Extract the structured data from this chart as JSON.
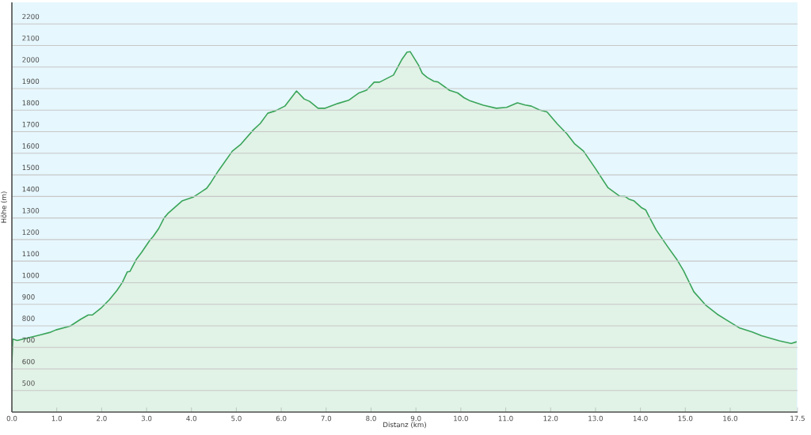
{
  "chart_data": {
    "type": "area",
    "xlabel": "Distanz  (km)",
    "ylabel": "Höhe (m)",
    "x": [
      0,
      0.02,
      0.12,
      0.32,
      0.61,
      0.84,
      0.98,
      1.3,
      1.53,
      1.7,
      1.79,
      2.0,
      2.17,
      2.34,
      2.46,
      2.57,
      2.63,
      2.78,
      2.89,
      3.07,
      3.15,
      3.27,
      3.39,
      3.47,
      3.79,
      4.05,
      4.34,
      4.43,
      4.6,
      4.91,
      5.09,
      5.38,
      5.53,
      5.7,
      5.87,
      6.08,
      6.34,
      6.51,
      6.63,
      6.82,
      6.98,
      7.26,
      7.5,
      7.72,
      7.9,
      8.07,
      8.19,
      8.5,
      8.68,
      8.8,
      8.87,
      9.06,
      9.14,
      9.25,
      9.4,
      9.49,
      9.75,
      9.93,
      10.07,
      10.21,
      10.5,
      10.79,
      11.02,
      11.26,
      11.43,
      11.57,
      11.75,
      11.92,
      12.15,
      12.36,
      12.53,
      12.73,
      12.99,
      13.28,
      13.54,
      13.66,
      13.74,
      13.86,
      14.03,
      14.12,
      14.18,
      14.35,
      14.61,
      14.82,
      14.96,
      15.19,
      15.45,
      15.71,
      15.94,
      16.2,
      16.49,
      16.7,
      17.1,
      17.36,
      17.48
    ],
    "series": [
      {
        "color": "#3aa55a",
        "values": [
          628,
          738,
          732,
          742,
          757,
          769,
          781,
          799,
          830,
          850,
          850,
          885,
          921,
          964,
          1001,
          1050,
          1052,
          1111,
          1141,
          1196,
          1215,
          1251,
          1300,
          1320,
          1379,
          1398,
          1438,
          1464,
          1519,
          1610,
          1640,
          1709,
          1738,
          1786,
          1797,
          1819,
          1889,
          1852,
          1841,
          1809,
          1809,
          1831,
          1846,
          1879,
          1893,
          1930,
          1930,
          1963,
          2033,
          2069,
          2072,
          2008,
          1971,
          1952,
          1934,
          1931,
          1892,
          1880,
          1858,
          1843,
          1823,
          1809,
          1813,
          1834,
          1824,
          1819,
          1801,
          1792,
          1736,
          1691,
          1645,
          1611,
          1532,
          1440,
          1401,
          1400,
          1388,
          1379,
          1347,
          1337,
          1312,
          1245,
          1166,
          1105,
          1056,
          958,
          897,
          854,
          824,
          791,
          771,
          754,
          730,
          718,
          726
        ]
      }
    ],
    "xlim": [
      0,
      17.5
    ],
    "ylim": [
      400,
      2300
    ],
    "xticks": [
      {
        "value": 0,
        "label": "0.0"
      },
      {
        "value": 1,
        "label": "1.0"
      },
      {
        "value": 2,
        "label": "2.0"
      },
      {
        "value": 3,
        "label": "3.0"
      },
      {
        "value": 4,
        "label": "4.0"
      },
      {
        "value": 5,
        "label": "5.0"
      },
      {
        "value": 6,
        "label": "6.0"
      },
      {
        "value": 7,
        "label": "7.0"
      },
      {
        "value": 8,
        "label": "8.0"
      },
      {
        "value": 9,
        "label": "9.0"
      },
      {
        "value": 10,
        "label": "10.0"
      },
      {
        "value": 11,
        "label": "11.0"
      },
      {
        "value": 12,
        "label": "12.0"
      },
      {
        "value": 13,
        "label": "13.0"
      },
      {
        "value": 14,
        "label": "14.0"
      },
      {
        "value": 15,
        "label": "15.0"
      },
      {
        "value": 16,
        "label": "16.0"
      },
      {
        "value": 17.5,
        "label": "17.5"
      }
    ],
    "yticks": [
      500,
      600,
      700,
      800,
      900,
      1000,
      1100,
      1200,
      1300,
      1400,
      1500,
      1600,
      1700,
      1800,
      1900,
      2000,
      2100,
      2200
    ],
    "grid": "y"
  }
}
